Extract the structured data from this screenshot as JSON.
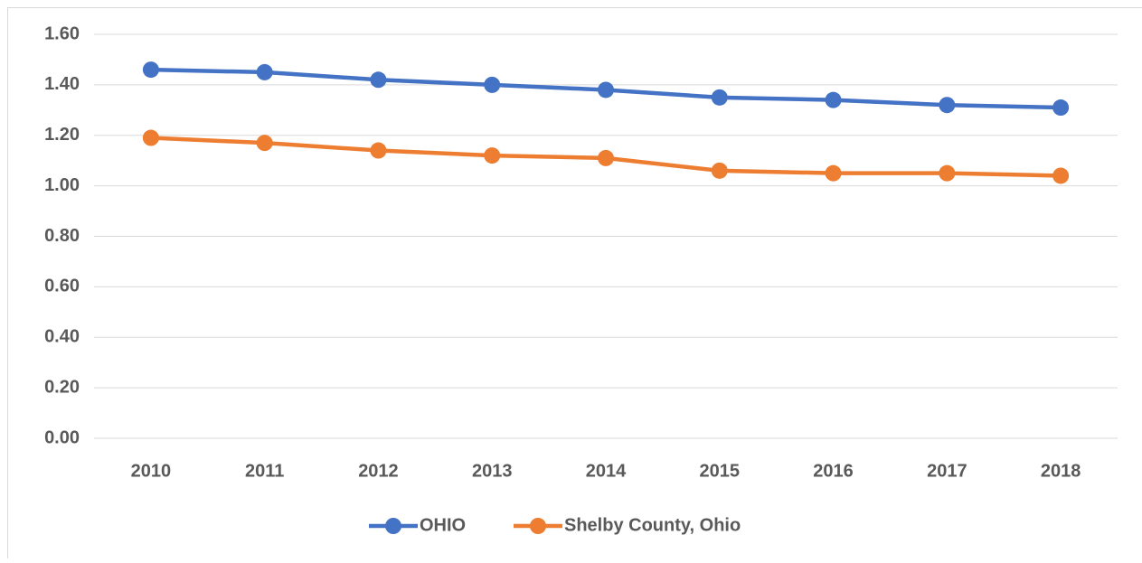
{
  "chart_data": {
    "type": "line",
    "categories": [
      "2010",
      "2011",
      "2012",
      "2013",
      "2014",
      "2015",
      "2016",
      "2017",
      "2018"
    ],
    "series": [
      {
        "name": "OHIO",
        "color": "#4472c4",
        "values": [
          1.46,
          1.45,
          1.42,
          1.4,
          1.38,
          1.35,
          1.34,
          1.32,
          1.31
        ]
      },
      {
        "name": "Shelby County, Ohio",
        "color": "#ed7d31",
        "values": [
          1.19,
          1.17,
          1.14,
          1.12,
          1.11,
          1.06,
          1.05,
          1.05,
          1.04
        ]
      }
    ],
    "ylim": [
      0,
      1.6
    ],
    "yticks": [
      {
        "value": 0,
        "label": "0.00"
      },
      {
        "value": 0.2,
        "label": "0.20"
      },
      {
        "value": 0.4,
        "label": "0.40"
      },
      {
        "value": 0.6,
        "label": "0.60"
      },
      {
        "value": 0.8,
        "label": "0.80"
      },
      {
        "value": 1.0,
        "label": "1.00"
      },
      {
        "value": 1.2,
        "label": "1.20"
      },
      {
        "value": 1.4,
        "label": "1.40"
      },
      {
        "value": 1.6,
        "label": "1.60"
      }
    ],
    "grid": true,
    "legend": "bottom"
  }
}
